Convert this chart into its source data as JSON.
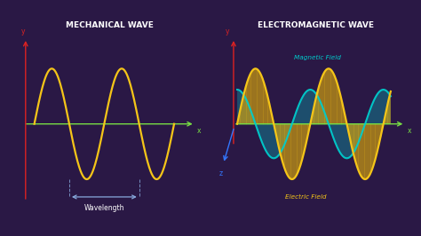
{
  "bg_outer": "#2a1845",
  "bg_panel": "#362060",
  "panel_left_title": "MECHANICAL WAVE",
  "panel_right_title": "ELECTROMAGNETIC WAVE",
  "wave_color": "#f5c518",
  "axis_x_color": "#77dd44",
  "axis_y_color": "#dd2222",
  "axis_z_color": "#3377ff",
  "wavelength_label": "Wavelength",
  "wavelength_arrow_color": "#88aadd",
  "electric_field_label": "Electric Field",
  "magnetic_field_label": "Magnetic Field",
  "electric_fill_color": "#c8960a",
  "magnetic_fill_color": "#00cccc",
  "magnetic_outline_color": "#00cccc",
  "title_fontsize": 6.5,
  "label_fontsize": 5.5,
  "wave_linewidth": 1.6,
  "axis_linewidth": 1.0
}
